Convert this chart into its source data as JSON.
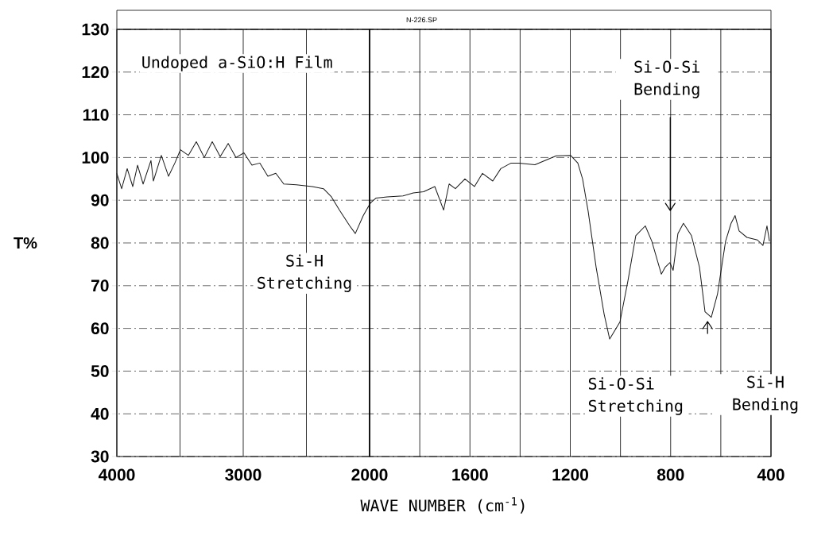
{
  "chart_data": [
    {
      "type": "line",
      "title": "Undoped a-SiO:H Film",
      "ylabel": "T%",
      "x": [
        4000,
        3962,
        3918,
        3874,
        3836,
        3792,
        3730,
        3711,
        3648,
        3591,
        3541,
        3497,
        3434,
        3371,
        3308,
        3245,
        3182,
        3119,
        3057,
        2994,
        2931,
        2868,
        2805,
        2742,
        2679,
        2579,
        2453,
        2365,
        2302,
        2239,
        2157,
        2113,
        2050,
        2000
      ],
      "series": [
        {
          "color": "#1a1a1a",
          "values": [
            96.3,
            92.7,
            97.4,
            93.2,
            98.2,
            93.8,
            99.3,
            94.5,
            100.5,
            95.6,
            98.7,
            101.8,
            100.5,
            103.7,
            100,
            103.7,
            100.2,
            103.3,
            100,
            101.1,
            98.2,
            98.7,
            95.6,
            96.3,
            93.8,
            93.6,
            93.2,
            92.7,
            90.8,
            87.7,
            84.0,
            82.2,
            86.4,
            89.0
          ]
        }
      ],
      "xlim": [
        4000,
        2000
      ],
      "ylim": [
        30,
        130
      ],
      "xticks": [
        4000,
        3000,
        {
          "value": 2000,
          "label": null
        }
      ],
      "yticks": [
        30,
        40,
        50,
        60,
        70,
        80,
        90,
        100,
        110,
        120,
        130
      ],
      "grid": true,
      "annotations": [
        {
          "text": "Si-H Stretching",
          "x": 2113,
          "y": 82.2
        },
        "N-226.SP"
      ]
    },
    {
      "type": "line",
      "xlabel": "WAVE NUMBER (cm$^{-1}$)",
      "x": [
        2000,
        1994,
        1975,
        1930,
        1867,
        1826,
        1785,
        1740,
        1705,
        1683,
        1658,
        1620,
        1582,
        1550,
        1509,
        1477,
        1436,
        1404,
        1341,
        1256,
        1199,
        1170,
        1151,
        1129,
        1097,
        1065,
        1043,
        1002,
        970,
        939,
        901,
        875,
        837,
        822,
        803,
        790,
        771,
        749,
        717,
        685,
        663,
        638,
        613,
        581,
        559,
        543,
        527,
        496,
        454,
        432,
        416,
        406
      ],
      "series": [
        {
          "color": "#1a1a1a",
          "values": [
            89.0,
            89.5,
            90.5,
            90.8,
            91.0,
            91.7,
            92.0,
            93.2,
            87.7,
            93.8,
            92.7,
            95.0,
            93.2,
            96.3,
            94.5,
            97.4,
            98.7,
            98.7,
            98.3,
            100.4,
            100.5,
            98.7,
            95.0,
            87.5,
            74.3,
            63.3,
            57.5,
            61.5,
            71.2,
            81.7,
            84.0,
            80.4,
            72.7,
            74.3,
            75.4,
            73.6,
            82.2,
            84.6,
            81.7,
            74.3,
            63.9,
            62.6,
            68.1,
            80.4,
            84.6,
            86.4,
            82.8,
            81.3,
            80.7,
            79.4,
            84,
            80.4
          ]
        }
      ],
      "xlim": [
        2000,
        400
      ],
      "ylim": [
        30,
        130
      ],
      "xticks": [
        2000,
        1600,
        1200,
        800,
        400
      ],
      "yticks": [
        30,
        40,
        50,
        60,
        70,
        80,
        90,
        100,
        110,
        120,
        130
      ],
      "tick_labels": "x",
      "grid": true,
      "annotations": [
        {
          "text": "Si-O-Si Stretching",
          "x": 1043,
          "y": 57.5
        },
        "Si-O-Si Bending",
        "Si-H Bending"
      ]
    }
  ]
}
